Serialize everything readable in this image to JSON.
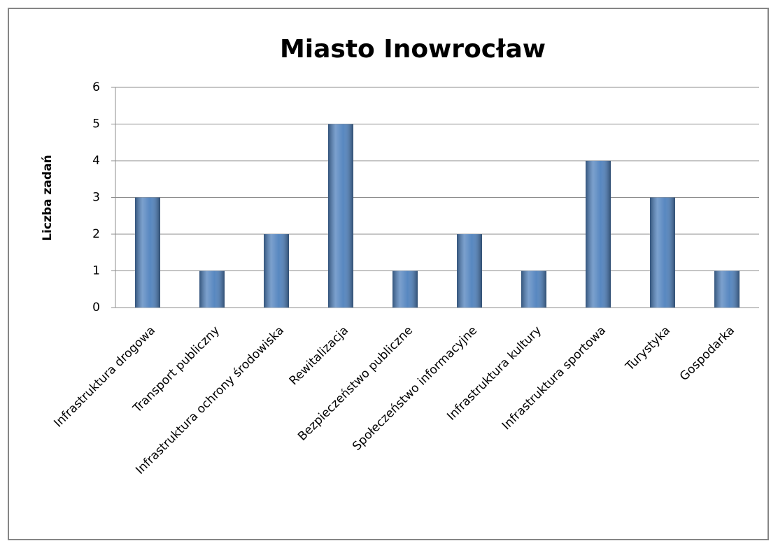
{
  "chart_data": {
    "type": "bar",
    "title": "Miasto Inowrocław",
    "y_label": "Liczba zadań",
    "categories": [
      "Infrastruktura drogowa",
      "Transport publiczny",
      "Infrastruktura ochrony środowiska",
      "Rewitalizacja",
      "Bezpieczeństwo publiczne",
      "Społeczeństwo informacyjne",
      "Infrastruktura kultury",
      "Infrastruktura sportowa",
      "Turystyka",
      "Gospodarka"
    ],
    "values": [
      3,
      1,
      2,
      5,
      1,
      2,
      1,
      4,
      3,
      1
    ],
    "color": "#4f81bd",
    "ylim": [
      0,
      6
    ],
    "yticks": [
      0,
      1,
      2,
      3,
      4,
      5,
      6
    ],
    "grid": true
  }
}
